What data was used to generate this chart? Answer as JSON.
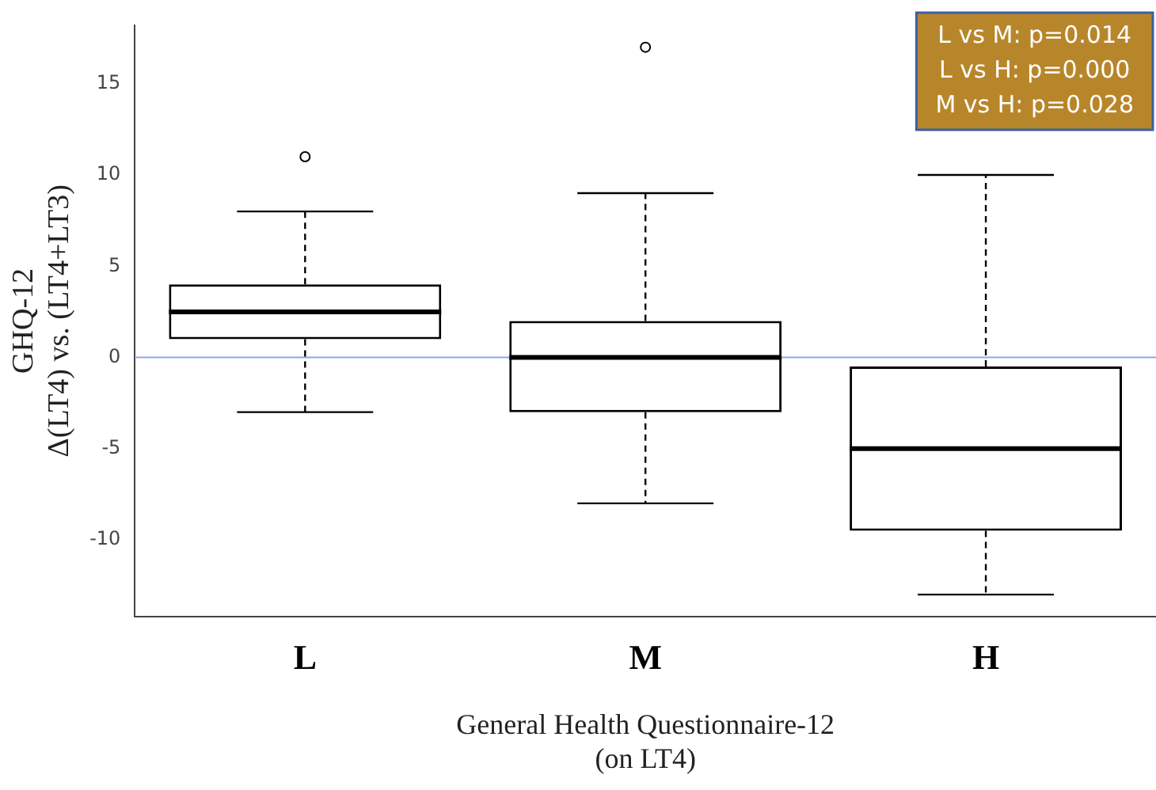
{
  "chart_data": {
    "type": "box",
    "xlabel": "General Health Questionnaire-12\n(on LT4)",
    "ylabel": "GHQ-12\nΔ(LT4) vs. (LT4+LT3)",
    "categories": [
      "L",
      "M",
      "H"
    ],
    "boxes": [
      {
        "low": -3,
        "q1": 1,
        "median": 2.5,
        "q3": 4,
        "high": 8,
        "outliers": [
          11
        ]
      },
      {
        "low": -8,
        "q1": -3,
        "median": 0,
        "q3": 2,
        "high": 9,
        "outliers": [
          17
        ]
      },
      {
        "low": -13,
        "q1": -9.5,
        "median": -5,
        "q3": -0.5,
        "high": 10
      }
    ],
    "ylim": [
      -14.2,
      18.2
    ],
    "yticks": [
      -10,
      -5,
      0,
      5,
      10,
      15
    ],
    "ref_lines": [
      {
        "axis": "y",
        "value": 0,
        "color": "#8fa8e0"
      }
    ],
    "annotations": [
      "L vs M: p=0.014",
      "L vs H: p=0.000",
      "M vs H: p=0.028"
    ],
    "grid": false,
    "legend": false
  }
}
